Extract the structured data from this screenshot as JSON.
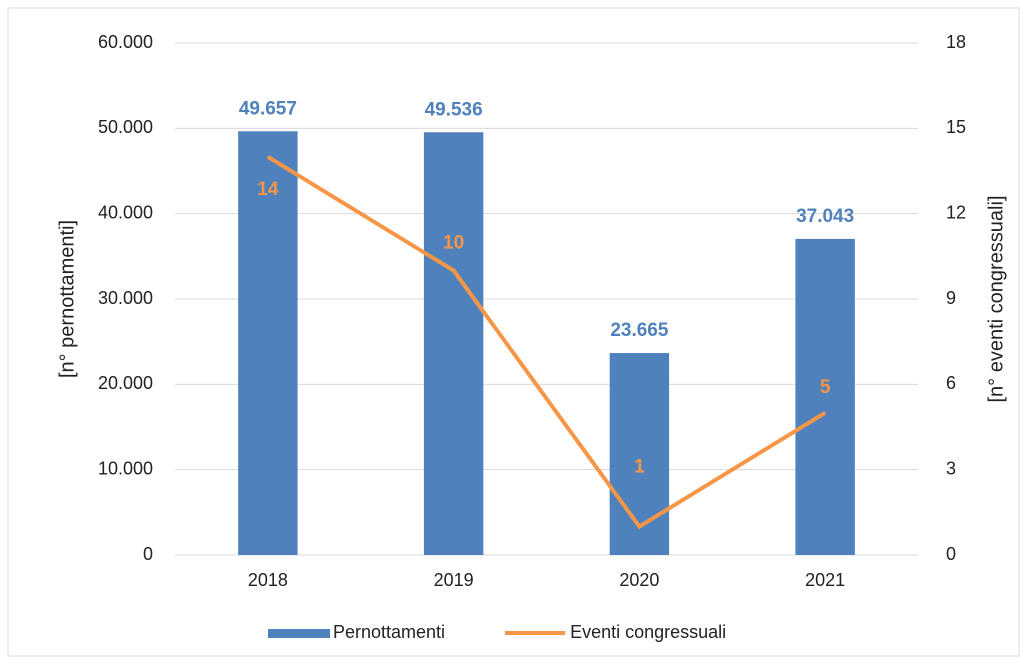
{
  "chart_data": {
    "type": "bar",
    "categories": [
      "2018",
      "2019",
      "2020",
      "2021"
    ],
    "series": [
      {
        "name": "Pernottamenti",
        "type": "bar",
        "color": "#4f81bd",
        "values": [
          49657,
          49536,
          23665,
          37043
        ],
        "value_labels": [
          "49.657",
          "49.536",
          "23.665",
          "37.043"
        ]
      },
      {
        "name": "Eventi congressuali",
        "type": "line",
        "axis": "y2",
        "color": "#f79646",
        "values": [
          14,
          10,
          1,
          5
        ]
      }
    ],
    "ylabel": "[n° pernottamenti]",
    "y2label": "[n° eventi congressuali]",
    "ylim": [
      0,
      60000
    ],
    "yticks": [
      0,
      {
        "value": 10000,
        "label": "10.000"
      },
      {
        "value": 20000,
        "label": "20.000"
      },
      {
        "value": 30000,
        "label": "30.000"
      },
      {
        "value": 40000,
        "label": "40.000"
      },
      {
        "value": 50000,
        "label": "50.000"
      },
      {
        "value": 60000,
        "label": "60.000"
      }
    ],
    "y2lim": [
      0,
      18
    ],
    "y2ticks": [
      0,
      3,
      6,
      9,
      12,
      15,
      18
    ],
    "grid": true,
    "legend": "bottom"
  }
}
